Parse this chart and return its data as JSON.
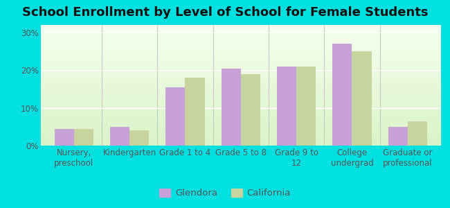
{
  "title": "School Enrollment by Level of School for Female Students",
  "categories": [
    "Nursery,\npreschool",
    "Kindergarten",
    "Grade 1 to 4",
    "Grade 5 to 8",
    "Grade 9 to\n12",
    "College\nundergrad",
    "Graduate or\nprofessional"
  ],
  "glendora": [
    4.5,
    5.0,
    15.5,
    20.5,
    21.0,
    27.0,
    5.0
  ],
  "california": [
    4.5,
    4.0,
    18.0,
    19.0,
    21.0,
    25.0,
    6.5
  ],
  "glendora_color": "#c8a0d8",
  "california_color": "#c8d4a0",
  "background_color": "#00e0e0",
  "yticks": [
    0,
    10,
    20,
    30
  ],
  "ylim": [
    0,
    32
  ],
  "legend_glendora": "Glendora",
  "legend_california": "California",
  "title_fontsize": 13,
  "tick_fontsize": 8.5,
  "legend_fontsize": 9.5,
  "bar_width": 0.35
}
